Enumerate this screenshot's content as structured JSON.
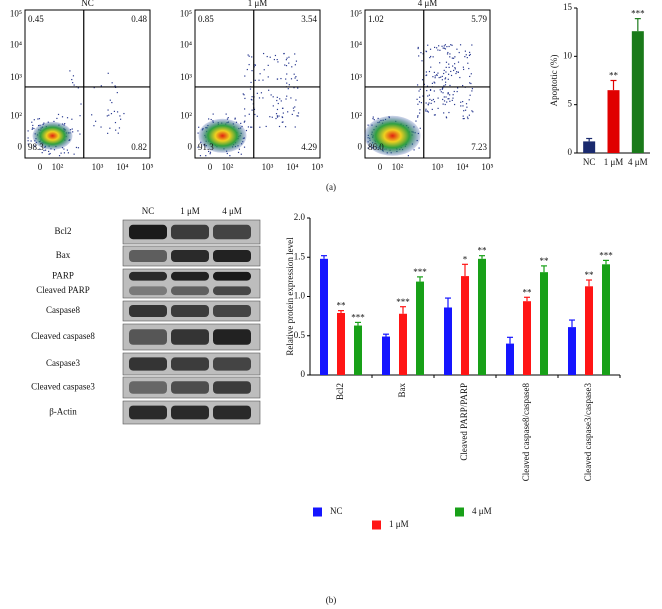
{
  "flow_cytometry": {
    "x_tick_labels": [
      "0",
      "10²",
      "10³",
      "10⁴",
      "10⁵"
    ],
    "y_tick_labels": [
      "0",
      "10²",
      "10³",
      "10⁴",
      "10⁵"
    ],
    "panels": [
      {
        "title": "NC",
        "upper_left": "0.45",
        "upper_right": "0.48",
        "lower_left": "98.3",
        "lower_right": "0.82"
      },
      {
        "title": "1 μM",
        "upper_left": "0.85",
        "upper_right": "3.54",
        "lower_left": "91.3",
        "lower_right": "4.29"
      },
      {
        "title": "4 μM",
        "upper_left": "1.02",
        "upper_right": "5.79",
        "lower_left": "86.0",
        "lower_right": "7.23"
      }
    ]
  },
  "western_blot": {
    "columns": [
      "NC",
      "1 μM",
      "4 μM"
    ],
    "rows": [
      "Bcl2",
      "Bax",
      "PARP",
      "Cleaved PARP",
      "Caspase8",
      "Cleaved caspase8",
      "Caspase3",
      "Cleaved caspase3",
      "β-Actin"
    ]
  },
  "panel_labels": [
    "(a)",
    "(b)"
  ],
  "chart_data": [
    {
      "type": "bar",
      "ylabel": "Apoptotic (%)",
      "categories": [
        "NC",
        "1 μM",
        "4 μM"
      ],
      "values": [
        1.2,
        6.5,
        12.6
      ],
      "errors": [
        0.3,
        1.0,
        1.3
      ],
      "colors": [
        "#1a2a6e",
        "#e00000",
        "#1a7a1a"
      ],
      "annotations": [
        null,
        "**",
        "***"
      ],
      "ylim": [
        0,
        15
      ],
      "yticks": [
        0,
        5,
        10,
        15
      ]
    },
    {
      "type": "grouped_bar",
      "ylabel": "Relative protein expression level",
      "categories": [
        "Bcl2",
        "Bax",
        "Cleaved PARP/PARP",
        "Cleaved caspase8/caspase8",
        "Cleaved caspase3/caspase3"
      ],
      "series": [
        {
          "name": "NC",
          "color": "#1515ff",
          "values": [
            1.48,
            0.49,
            0.86,
            0.4,
            0.61
          ],
          "errors": [
            0.04,
            0.03,
            0.12,
            0.08,
            0.09
          ]
        },
        {
          "name": "1 μM",
          "color": "#ff1515",
          "values": [
            0.79,
            0.78,
            1.26,
            0.94,
            1.13
          ],
          "errors": [
            0.03,
            0.09,
            0.15,
            0.05,
            0.08
          ],
          "annotations": [
            "**",
            "***",
            "*",
            "**",
            "**"
          ]
        },
        {
          "name": "4 μM",
          "color": "#18a018",
          "values": [
            0.63,
            1.19,
            1.48,
            1.31,
            1.41
          ],
          "errors": [
            0.04,
            0.06,
            0.04,
            0.08,
            0.05
          ],
          "annotations": [
            "***",
            "***",
            "**",
            "**",
            "***"
          ]
        }
      ],
      "ylim": [
        0,
        2
      ],
      "yticks": [
        0,
        0.5,
        {
          "value": 1,
          "label": "1.0"
        },
        1.5,
        {
          "value": 2,
          "label": "2.0"
        }
      ]
    }
  ]
}
